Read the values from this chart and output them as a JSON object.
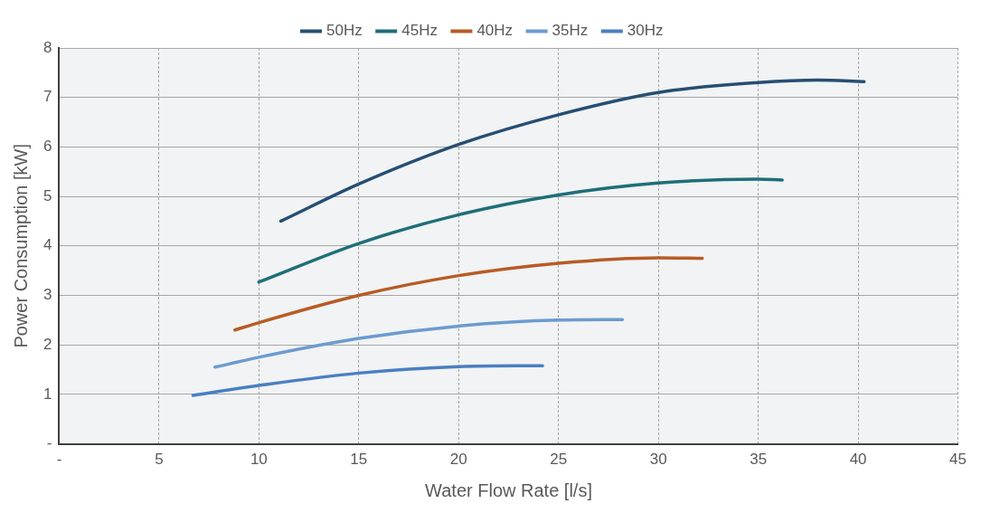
{
  "chart_data": {
    "type": "line",
    "xlabel": "Water Flow Rate [l/s]",
    "ylabel": "Power Consumption [kW]",
    "xlim": [
      0,
      45
    ],
    "xticks": [
      {
        "value": 0,
        "label": "-"
      },
      5,
      10,
      15,
      20,
      25,
      30,
      35,
      40,
      45
    ],
    "ylim": [
      0,
      8
    ],
    "yticks": [
      {
        "value": 0,
        "label": "-"
      },
      1,
      2,
      3,
      4,
      5,
      6,
      7,
      8
    ],
    "grid": true,
    "legend": "top",
    "marker": "none",
    "line_style": "solid",
    "series": [
      {
        "name": "50Hz",
        "color": "#264e73",
        "x": [
          11.1,
          15,
          20,
          25,
          30,
          35,
          38,
          40.3
        ],
        "values": [
          4.5,
          5.25,
          6.05,
          6.65,
          7.1,
          7.3,
          7.35,
          7.32
        ]
      },
      {
        "name": "45Hz",
        "color": "#1f6e78",
        "x": [
          10,
          15,
          20,
          25,
          30,
          35,
          36.2
        ],
        "values": [
          3.27,
          4.05,
          4.63,
          5.03,
          5.27,
          5.35,
          5.33
        ]
      },
      {
        "name": "40Hz",
        "color": "#b85b25",
        "x": [
          8.8,
          10,
          15,
          20,
          25,
          30,
          32.2
        ],
        "values": [
          2.3,
          2.45,
          3.0,
          3.4,
          3.65,
          3.76,
          3.75
        ]
      },
      {
        "name": "35Hz",
        "color": "#6c9bcf",
        "x": [
          7.8,
          10,
          15,
          20,
          25,
          28.2
        ],
        "values": [
          1.55,
          1.75,
          2.13,
          2.38,
          2.5,
          2.51
        ]
      },
      {
        "name": "30Hz",
        "color": "#4a7fc1",
        "x": [
          6.7,
          10,
          15,
          20,
          24.2
        ],
        "values": [
          0.98,
          1.18,
          1.43,
          1.56,
          1.58
        ]
      }
    ]
  }
}
